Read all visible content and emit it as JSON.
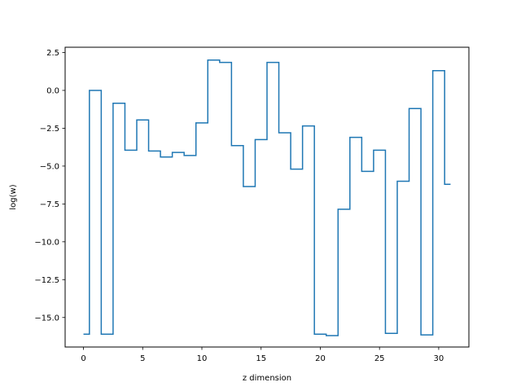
{
  "chart_data": {
    "type": "line",
    "style": "step",
    "title": "",
    "xlabel": "z dimension",
    "ylabel": "log(w)",
    "xlim": [
      -1.55,
      32.55
    ],
    "ylim": [
      -16.95,
      2.85
    ],
    "xticks": [
      0,
      5,
      10,
      15,
      20,
      25,
      30
    ],
    "xtick_labels": [
      "0",
      "5",
      "10",
      "15",
      "20",
      "25",
      "30"
    ],
    "yticks": [
      2.5,
      0.0,
      -2.5,
      -5.0,
      -7.5,
      -10.0,
      -12.5,
      -15.0
    ],
    "ytick_labels": [
      "2.5",
      "0.0",
      "−2.5",
      "−5.0",
      "−7.5",
      "−10.0",
      "−12.5",
      "−15.0"
    ],
    "grid": false,
    "line_color": "#1f77b4",
    "series": [
      {
        "x": [
          0,
          1,
          2,
          3,
          4,
          5,
          6,
          7,
          8,
          9,
          10,
          11,
          12,
          13,
          14,
          15,
          16,
          17,
          18,
          19,
          20,
          21,
          22,
          23,
          24,
          25,
          26,
          27,
          28,
          29,
          30,
          31
        ],
        "values": [
          -16.1,
          0.0,
          -16.1,
          -0.85,
          -3.95,
          -1.95,
          -4.0,
          -4.4,
          -4.1,
          -4.3,
          -2.15,
          2.0,
          1.85,
          -3.65,
          -6.35,
          -3.25,
          1.85,
          -2.8,
          -5.2,
          -2.35,
          -16.1,
          -16.2,
          -7.85,
          -3.1,
          -5.35,
          -3.95,
          -16.05,
          -6.0,
          -1.2,
          -16.15,
          1.3,
          -6.2
        ]
      }
    ]
  }
}
